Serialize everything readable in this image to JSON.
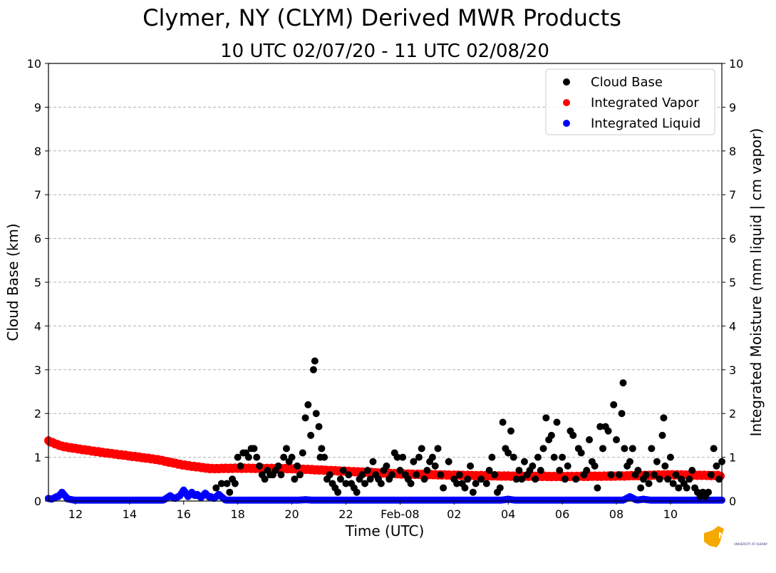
{
  "chart_data": {
    "type": "scatter",
    "title": "Clymer, NY (CLYM) Derived MWR Products",
    "subtitle": "10 UTC 02/07/20 - 11 UTC 02/08/20",
    "xlabel": "Time (UTC)",
    "ylabel": "Cloud Base (km)",
    "ylabel_right": "Integrated Moisture (mm liquid | cm vapor)",
    "xlim_hours": [
      11,
      35.9
    ],
    "ylim": [
      0,
      10
    ],
    "ylim_right": [
      0,
      10
    ],
    "x_ticks": [
      {
        "hour": 12,
        "label": "12"
      },
      {
        "hour": 14,
        "label": "14"
      },
      {
        "hour": 16,
        "label": "16"
      },
      {
        "hour": 18,
        "label": "18"
      },
      {
        "hour": 20,
        "label": "20"
      },
      {
        "hour": 22,
        "label": "22"
      },
      {
        "hour": 24,
        "label": "Feb-08"
      },
      {
        "hour": 26,
        "label": "02"
      },
      {
        "hour": 28,
        "label": "04"
      },
      {
        "hour": 30,
        "label": "06"
      },
      {
        "hour": 32,
        "label": "08"
      },
      {
        "hour": 34,
        "label": "10"
      }
    ],
    "y_ticks": [
      "0",
      "1",
      "2",
      "3",
      "4",
      "5",
      "6",
      "7",
      "8",
      "9",
      "10"
    ],
    "grid": "horizontal dashed",
    "legend": {
      "position": "top-right"
    },
    "series": [
      {
        "name": "Cloud Base",
        "color": "#000000",
        "points": [
          [
            17.2,
            0.3
          ],
          [
            17.4,
            0.4
          ],
          [
            17.6,
            0.4
          ],
          [
            17.7,
            0.2
          ],
          [
            17.8,
            0.5
          ],
          [
            17.9,
            0.4
          ],
          [
            18.0,
            1.0
          ],
          [
            18.1,
            0.8
          ],
          [
            18.2,
            1.1
          ],
          [
            18.3,
            1.1
          ],
          [
            18.4,
            1.0
          ],
          [
            18.5,
            1.2
          ],
          [
            18.6,
            1.2
          ],
          [
            18.7,
            1.0
          ],
          [
            18.8,
            0.8
          ],
          [
            18.9,
            0.6
          ],
          [
            19.0,
            0.5
          ],
          [
            19.1,
            0.7
          ],
          [
            19.2,
            0.6
          ],
          [
            19.3,
            0.6
          ],
          [
            19.4,
            0.7
          ],
          [
            19.5,
            0.8
          ],
          [
            19.6,
            0.6
          ],
          [
            19.7,
            1.0
          ],
          [
            19.8,
            1.2
          ],
          [
            19.9,
            0.9
          ],
          [
            20.0,
            1.0
          ],
          [
            20.1,
            0.5
          ],
          [
            20.2,
            0.8
          ],
          [
            20.3,
            0.6
          ],
          [
            20.4,
            1.1
          ],
          [
            20.5,
            1.9
          ],
          [
            20.6,
            2.2
          ],
          [
            20.7,
            1.5
          ],
          [
            20.8,
            3.0
          ],
          [
            20.85,
            3.2
          ],
          [
            20.9,
            2.0
          ],
          [
            21.0,
            1.7
          ],
          [
            21.05,
            1.0
          ],
          [
            21.1,
            1.2
          ],
          [
            21.2,
            1.0
          ],
          [
            21.3,
            0.5
          ],
          [
            21.4,
            0.6
          ],
          [
            21.5,
            0.4
          ],
          [
            21.6,
            0.3
          ],
          [
            21.7,
            0.2
          ],
          [
            21.8,
            0.5
          ],
          [
            21.9,
            0.7
          ],
          [
            22.0,
            0.4
          ],
          [
            22.1,
            0.6
          ],
          [
            22.2,
            0.4
          ],
          [
            22.3,
            0.3
          ],
          [
            22.4,
            0.2
          ],
          [
            22.5,
            0.5
          ],
          [
            22.6,
            0.6
          ],
          [
            22.7,
            0.4
          ],
          [
            22.8,
            0.7
          ],
          [
            22.9,
            0.5
          ],
          [
            23.0,
            0.9
          ],
          [
            23.1,
            0.6
          ],
          [
            23.2,
            0.5
          ],
          [
            23.3,
            0.4
          ],
          [
            23.4,
            0.7
          ],
          [
            23.5,
            0.8
          ],
          [
            23.6,
            0.5
          ],
          [
            23.7,
            0.6
          ],
          [
            23.8,
            1.1
          ],
          [
            23.9,
            1.0
          ],
          [
            24.0,
            0.7
          ],
          [
            24.1,
            1.0
          ],
          [
            24.2,
            0.6
          ],
          [
            24.3,
            0.5
          ],
          [
            24.4,
            0.4
          ],
          [
            24.5,
            0.9
          ],
          [
            24.6,
            0.6
          ],
          [
            24.7,
            1.0
          ],
          [
            24.8,
            1.2
          ],
          [
            24.9,
            0.5
          ],
          [
            25.0,
            0.7
          ],
          [
            25.1,
            0.9
          ],
          [
            25.2,
            1.0
          ],
          [
            25.3,
            0.8
          ],
          [
            25.4,
            1.2
          ],
          [
            25.5,
            0.6
          ],
          [
            25.6,
            0.3
          ],
          [
            25.8,
            0.9
          ],
          [
            26.0,
            0.5
          ],
          [
            26.1,
            0.4
          ],
          [
            26.2,
            0.6
          ],
          [
            26.3,
            0.4
          ],
          [
            26.4,
            0.3
          ],
          [
            26.5,
            0.5
          ],
          [
            26.6,
            0.8
          ],
          [
            26.7,
            0.2
          ],
          [
            26.8,
            0.4
          ],
          [
            27.0,
            0.5
          ],
          [
            27.2,
            0.4
          ],
          [
            27.3,
            0.7
          ],
          [
            27.4,
            1.0
          ],
          [
            27.5,
            0.6
          ],
          [
            27.6,
            0.2
          ],
          [
            27.7,
            0.3
          ],
          [
            27.8,
            1.8
          ],
          [
            27.9,
            1.2
          ],
          [
            28.0,
            1.1
          ],
          [
            28.1,
            1.6
          ],
          [
            28.2,
            1.0
          ],
          [
            28.3,
            0.5
          ],
          [
            28.4,
            0.7
          ],
          [
            28.5,
            0.5
          ],
          [
            28.6,
            0.9
          ],
          [
            28.7,
            0.6
          ],
          [
            28.8,
            0.7
          ],
          [
            28.9,
            0.8
          ],
          [
            29.0,
            0.5
          ],
          [
            29.1,
            1.0
          ],
          [
            29.2,
            0.7
          ],
          [
            29.3,
            1.2
          ],
          [
            29.4,
            1.9
          ],
          [
            29.5,
            1.4
          ],
          [
            29.6,
            1.5
          ],
          [
            29.7,
            1.0
          ],
          [
            29.8,
            1.8
          ],
          [
            29.9,
            0.7
          ],
          [
            30.0,
            1.0
          ],
          [
            30.1,
            0.5
          ],
          [
            30.2,
            0.8
          ],
          [
            30.3,
            1.6
          ],
          [
            30.4,
            1.5
          ],
          [
            30.5,
            0.5
          ],
          [
            30.6,
            1.2
          ],
          [
            30.7,
            1.1
          ],
          [
            30.8,
            0.6
          ],
          [
            30.9,
            0.7
          ],
          [
            31.0,
            1.4
          ],
          [
            31.1,
            0.9
          ],
          [
            31.2,
            0.8
          ],
          [
            31.3,
            0.3
          ],
          [
            31.4,
            1.7
          ],
          [
            31.5,
            1.2
          ],
          [
            31.6,
            1.7
          ],
          [
            31.7,
            1.6
          ],
          [
            31.8,
            0.6
          ],
          [
            31.9,
            2.2
          ],
          [
            32.0,
            1.4
          ],
          [
            32.1,
            0.6
          ],
          [
            32.2,
            2.0
          ],
          [
            32.25,
            2.7
          ],
          [
            32.3,
            1.2
          ],
          [
            32.4,
            0.8
          ],
          [
            32.5,
            0.9
          ],
          [
            32.6,
            1.2
          ],
          [
            32.7,
            0.6
          ],
          [
            32.8,
            0.7
          ],
          [
            32.9,
            0.3
          ],
          [
            33.0,
            0.5
          ],
          [
            33.1,
            0.6
          ],
          [
            33.2,
            0.4
          ],
          [
            33.3,
            1.2
          ],
          [
            33.4,
            0.6
          ],
          [
            33.5,
            0.9
          ],
          [
            33.6,
            0.5
          ],
          [
            33.7,
            1.5
          ],
          [
            33.75,
            1.9
          ],
          [
            33.8,
            0.8
          ],
          [
            33.9,
            0.5
          ],
          [
            34.0,
            1.0
          ],
          [
            34.1,
            0.4
          ],
          [
            34.2,
            0.6
          ],
          [
            34.3,
            0.3
          ],
          [
            34.4,
            0.5
          ],
          [
            34.5,
            0.4
          ],
          [
            34.6,
            0.3
          ],
          [
            34.7,
            0.5
          ],
          [
            34.8,
            0.7
          ],
          [
            34.9,
            0.3
          ],
          [
            35.0,
            0.2
          ],
          [
            35.1,
            0.1
          ],
          [
            35.2,
            0.2
          ],
          [
            35.3,
            0.1
          ],
          [
            35.4,
            0.2
          ],
          [
            35.5,
            0.6
          ],
          [
            35.6,
            1.2
          ],
          [
            35.7,
            0.8
          ],
          [
            35.8,
            0.5
          ],
          [
            35.9,
            0.9
          ]
        ]
      },
      {
        "name": "Integrated Vapor",
        "color": "#ff0000",
        "anchors": [
          [
            11.0,
            1.37
          ],
          [
            11.5,
            1.25
          ],
          [
            12.0,
            1.2
          ],
          [
            13.0,
            1.11
          ],
          [
            14.0,
            1.03
          ],
          [
            15.0,
            0.95
          ],
          [
            16.0,
            0.82
          ],
          [
            17.0,
            0.74
          ],
          [
            18.0,
            0.75
          ],
          [
            20.0,
            0.74
          ],
          [
            22.0,
            0.68
          ],
          [
            24.0,
            0.62
          ],
          [
            26.0,
            0.59
          ],
          [
            28.0,
            0.57
          ],
          [
            30.0,
            0.56
          ],
          [
            32.0,
            0.57
          ],
          [
            34.0,
            0.6
          ],
          [
            35.9,
            0.58
          ]
        ]
      },
      {
        "name": "Integrated Liquid",
        "color": "#0000ff",
        "baseline": 0.02,
        "bumps": [
          [
            11.0,
            0.06
          ],
          [
            11.3,
            0.1
          ],
          [
            11.5,
            0.2
          ],
          [
            11.7,
            0.05
          ],
          [
            15.5,
            0.12
          ],
          [
            15.8,
            0.1
          ],
          [
            16.0,
            0.25
          ],
          [
            16.3,
            0.2
          ],
          [
            16.5,
            0.15
          ],
          [
            16.8,
            0.18
          ],
          [
            17.0,
            0.1
          ],
          [
            17.3,
            0.15
          ],
          [
            20.5,
            0.03
          ],
          [
            28.0,
            0.04
          ],
          [
            32.5,
            0.1
          ],
          [
            33.0,
            0.04
          ]
        ]
      }
    ]
  },
  "logo": {
    "text": "NYS Mesonet",
    "subtext": "UNIVERSITY AT ALBANY"
  }
}
